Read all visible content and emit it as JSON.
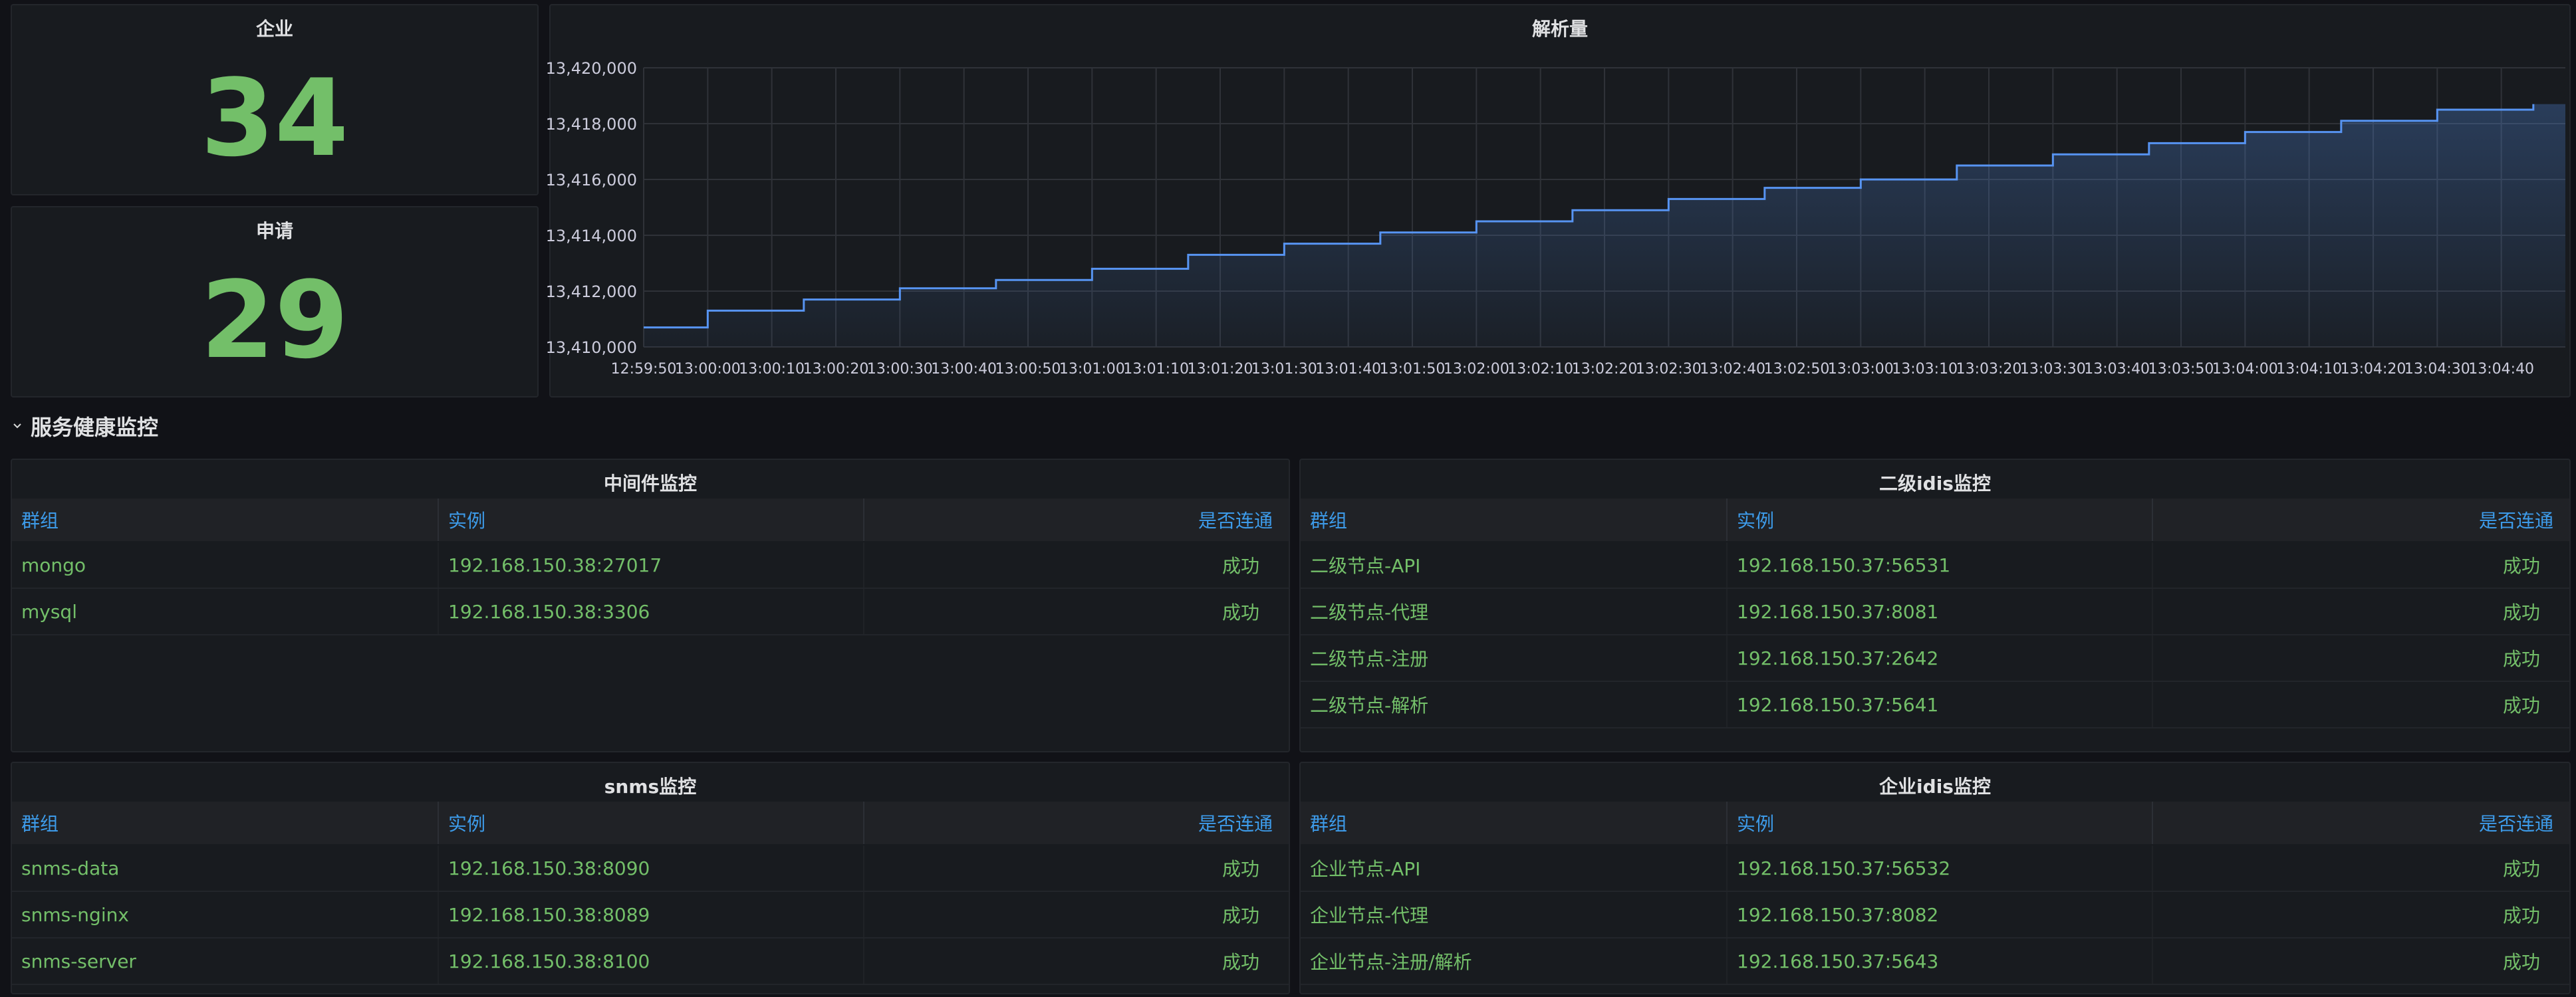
{
  "stats": [
    {
      "title": "企业",
      "value": "34"
    },
    {
      "title": "申请",
      "value": "29"
    }
  ],
  "chart": {
    "title": "解析量"
  },
  "chart_data": {
    "type": "line",
    "title": "解析量",
    "xlabel": "",
    "ylabel": "",
    "x_ticks": [
      "12:59:50",
      "13:00:00",
      "13:00:10",
      "13:00:20",
      "13:00:30",
      "13:00:40",
      "13:00:50",
      "13:01:00",
      "13:01:10",
      "13:01:20",
      "13:01:30",
      "13:01:40",
      "13:01:50",
      "13:02:00",
      "13:02:10",
      "13:02:20",
      "13:02:30",
      "13:02:40",
      "13:02:50",
      "13:03:00",
      "13:03:10",
      "13:03:20",
      "13:03:30",
      "13:03:40",
      "13:03:50",
      "13:04:00",
      "13:04:10",
      "13:04:20",
      "13:04:30",
      "13:04:40"
    ],
    "y_ticks": [
      "13,410,000",
      "13,412,000",
      "13,414,000",
      "13,416,000",
      "13,418,000",
      "13,420,000"
    ],
    "ylim": [
      13410000,
      13420000
    ],
    "x_range": [
      "12:59:50",
      "13:04:50"
    ],
    "series": [
      {
        "color": "#5794f2",
        "x": [
          "12:59:50",
          "13:00:00",
          "13:00:15",
          "13:00:30",
          "13:00:45",
          "13:01:00",
          "13:01:15",
          "13:01:30",
          "13:01:45",
          "13:02:00",
          "13:02:15",
          "13:02:30",
          "13:02:45",
          "13:03:00",
          "13:03:15",
          "13:03:30",
          "13:03:45",
          "13:04:00",
          "13:04:15",
          "13:04:30",
          "13:04:45"
        ],
        "values": [
          13410700,
          13411300,
          13411700,
          13412100,
          13412400,
          13412800,
          13413300,
          13413700,
          13414100,
          13414500,
          13414900,
          13415300,
          13415700,
          13416000,
          13416500,
          13416900,
          13417300,
          13417700,
          13418100,
          13418500,
          13418700
        ]
      }
    ],
    "grid": true,
    "fill": true
  },
  "row": {
    "title": "服务健康监控"
  },
  "tables": [
    {
      "title": "中间件监控",
      "headers": [
        "群组",
        "实例",
        "是否连通"
      ],
      "rows": [
        [
          "mongo",
          "192.168.150.38:27017",
          "成功"
        ],
        [
          "mysql",
          "192.168.150.38:3306",
          "成功"
        ]
      ]
    },
    {
      "title": "二级idis监控",
      "headers": [
        "群组",
        "实例",
        "是否连通"
      ],
      "rows": [
        [
          "二级节点-API",
          "192.168.150.37:56531",
          "成功"
        ],
        [
          "二级节点-代理",
          "192.168.150.37:8081",
          "成功"
        ],
        [
          "二级节点-注册",
          "192.168.150.37:2642",
          "成功"
        ],
        [
          "二级节点-解析",
          "192.168.150.37:5641",
          "成功"
        ]
      ]
    },
    {
      "title": "snms监控",
      "headers": [
        "群组",
        "实例",
        "是否连通"
      ],
      "rows": [
        [
          "snms-data",
          "192.168.150.38:8090",
          "成功"
        ],
        [
          "snms-nginx",
          "192.168.150.38:8089",
          "成功"
        ],
        [
          "snms-server",
          "192.168.150.38:8100",
          "成功"
        ]
      ]
    },
    {
      "title": "企业idis监控",
      "headers": [
        "群组",
        "实例",
        "是否连通"
      ],
      "rows": [
        [
          "企业节点-API",
          "192.168.150.37:56532",
          "成功"
        ],
        [
          "企业节点-代理",
          "192.168.150.37:8082",
          "成功"
        ],
        [
          "企业节点-注册/解析",
          "192.168.150.37:5643",
          "成功"
        ]
      ]
    }
  ],
  "colors": {
    "background": "#111217",
    "panel": "#181b1f",
    "stat_green": "#73bf69",
    "header_blue": "#3d9be9",
    "line_blue": "#5794f2"
  }
}
